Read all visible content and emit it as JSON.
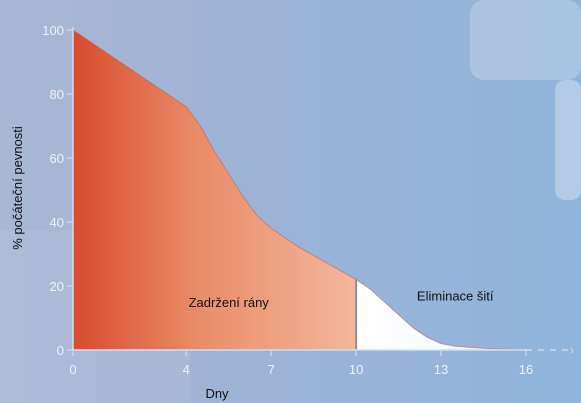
{
  "chart_data": {
    "type": "area",
    "xlabel": "Dny",
    "ylabel": "% počáteční pevnosti",
    "xlim": [
      0,
      16
    ],
    "ylim": [
      0,
      100
    ],
    "xticks": [
      0,
      4,
      7,
      10,
      13,
      16
    ],
    "yticks": [
      0,
      20,
      40,
      60,
      80,
      100
    ],
    "series": [
      {
        "x": [
          0,
          1,
          2,
          3,
          4,
          4.5,
          5,
          5.5,
          6,
          6.5,
          7,
          7.5,
          8,
          8.5,
          9,
          9.5,
          10,
          10.5,
          11,
          11.5,
          12,
          12.5,
          13,
          13.5,
          14,
          14.5,
          15,
          15.5,
          16
        ],
        "y": [
          100,
          94,
          88,
          82,
          76,
          70,
          62,
          55,
          48,
          42,
          38,
          35,
          32,
          29.5,
          27,
          24.5,
          22,
          19,
          15,
          11,
          7,
          4,
          2,
          1.2,
          0.8,
          0.5,
          0.3,
          0.2,
          0
        ]
      }
    ],
    "divider_x": 10,
    "annotations": [
      {
        "text": "Zadržení rány",
        "x": 5.5,
        "y": 15
      },
      {
        "text": "Eliminace šití",
        "x": 13.5,
        "y": 17
      }
    ]
  },
  "colors": {
    "background_left": "#a9b7d3",
    "background_right": "#8fb4dc",
    "area_left": "#d84b2e",
    "area_mid": "#f2b79c",
    "area_right": "#ffffff",
    "axis": "#cfd8e6",
    "tick_text": "#e8eef7",
    "label_text": "#111111"
  }
}
